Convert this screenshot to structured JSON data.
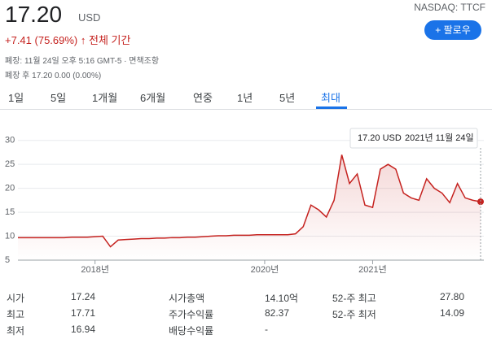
{
  "header": {
    "price": "17.20",
    "currency": "USD",
    "exchange": "NASDAQ: TTCF",
    "change": "+7.41 (75.69%)",
    "change_period": "전체 기간",
    "follow_button": "팔로우",
    "status_line": "폐장: 11월 24일 오후 5:16 GMT-5 · 면책조항",
    "after_hours": "폐장 후 17.20 0.00 (0.00%)"
  },
  "tabs": [
    "1일",
    "5일",
    "1개월",
    "6개월",
    "연중",
    "1년",
    "5년",
    "최대"
  ],
  "active_tab": 7,
  "chart_data": {
    "type": "line",
    "color": "#c5221f",
    "categories": [
      null,
      null,
      null,
      null,
      null,
      null,
      null,
      null,
      null,
      null,
      "2018년",
      null,
      null,
      null,
      null,
      null,
      null,
      null,
      null,
      null,
      null,
      null,
      null,
      null,
      null,
      null,
      null,
      null,
      null,
      null,
      null,
      null,
      "2020년",
      null,
      null,
      null,
      null,
      null,
      null,
      null,
      null,
      null,
      null,
      null,
      null,
      null,
      "2021년",
      null,
      null,
      null,
      null,
      null,
      null,
      null,
      null,
      null,
      null,
      null,
      null,
      null,
      null
    ],
    "values": [
      9.7,
      9.7,
      9.7,
      9.7,
      9.7,
      9.7,
      9.7,
      9.8,
      9.8,
      9.8,
      9.9,
      10,
      7.8,
      9.2,
      9.3,
      9.4,
      9.5,
      9.5,
      9.6,
      9.6,
      9.7,
      9.7,
      9.8,
      9.8,
      9.9,
      10,
      10.1,
      10.1,
      10.2,
      10.2,
      10.2,
      10.3,
      10.3,
      10.3,
      10.3,
      10.3,
      10.5,
      12,
      16.5,
      15.5,
      14,
      17.5,
      27,
      21,
      23,
      16.5,
      16,
      24,
      25,
      24,
      19,
      18,
      17.5,
      22,
      20,
      19,
      17,
      21,
      18,
      17.5,
      17.2
    ],
    "ylim": [
      5,
      32.5
    ],
    "yticks": [
      5,
      10,
      15,
      20,
      25,
      30
    ],
    "grid": true,
    "tooltip": {
      "value": "17.20 USD",
      "date": "2021년 11월 24일"
    }
  },
  "stats": {
    "rows": [
      [
        "시가",
        "17.24",
        "시가총액",
        "14.10억",
        "52-주 최고",
        "27.80"
      ],
      [
        "최고",
        "17.71",
        "주가수익률",
        "82.37",
        "52-주 최저",
        "14.09"
      ],
      [
        "최저",
        "16.94",
        "배당수익률",
        "-"
      ]
    ]
  }
}
